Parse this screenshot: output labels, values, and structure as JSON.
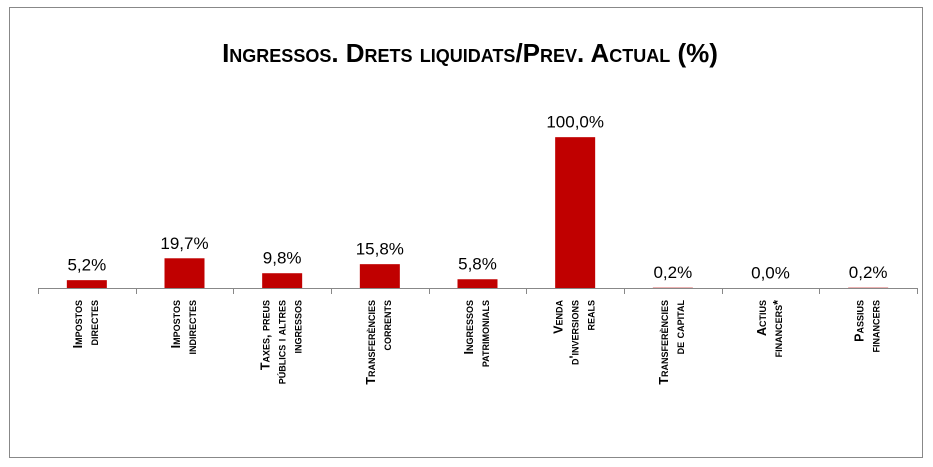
{
  "chart_data": {
    "type": "bar",
    "title": "Ingressos. Drets liquidats/Prev. Actual (%)",
    "categories": [
      [
        "Impostos",
        "directes"
      ],
      [
        "Impostos",
        "indirectes"
      ],
      [
        "Taxes, preus",
        "públics i altres",
        "ingressos"
      ],
      [
        "Transferències",
        "corrents"
      ],
      [
        "Ingressos",
        "patrimonials"
      ],
      [
        "Venda",
        "d'inversions",
        "reals"
      ],
      [
        "Transferències",
        "de capital"
      ],
      [
        "Actius",
        "financers*"
      ],
      [
        "Passius",
        "financers"
      ]
    ],
    "values": [
      5.2,
      19.7,
      9.8,
      15.8,
      5.8,
      100.0,
      0.2,
      0.0,
      0.2
    ],
    "value_labels": [
      "5,2%",
      "19,7%",
      "9,8%",
      "15,8%",
      "5,8%",
      "100,0%",
      "0,2%",
      "0,0%",
      "0,2%"
    ],
    "color": "#c00000",
    "ylim": [
      0,
      120
    ]
  }
}
